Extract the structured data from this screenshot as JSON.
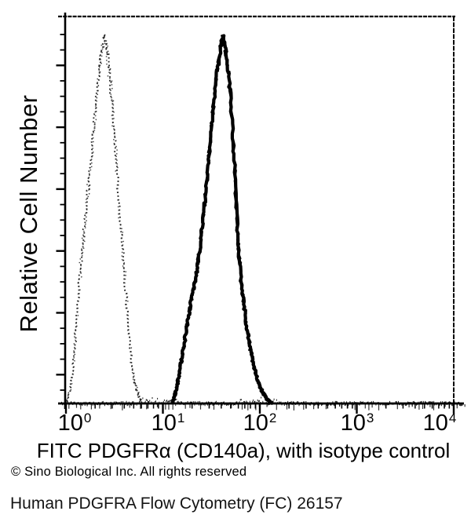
{
  "chart_data": {
    "type": "line",
    "subtype": "flow-cytometry-histogram-overlay",
    "title": "",
    "xlabel": "FITC PDGFRα (CD140a), with isotype control",
    "ylabel": "Relative Cell Number",
    "x_scale": "log10",
    "xlim_log10": [
      0,
      4
    ],
    "ylim": [
      0,
      1
    ],
    "grid": false,
    "legend": "none",
    "axis_color": "#000000",
    "background_color": "#ffffff",
    "x_ticks": [
      {
        "base": "10",
        "exp": "0"
      },
      {
        "base": "10",
        "exp": "1"
      },
      {
        "base": "10",
        "exp": "2"
      },
      {
        "base": "10",
        "exp": "3"
      },
      {
        "base": "10",
        "exp": "4"
      }
    ],
    "series": [
      {
        "name": "Isotype control",
        "line_style": "dotted",
        "color": "#1c1c1c",
        "peak_x_value": 2.5,
        "points_log10x_heightfrac": [
          [
            0.01,
            0
          ],
          [
            0.04,
            0.03
          ],
          [
            0.07,
            0.09
          ],
          [
            0.1,
            0.18
          ],
          [
            0.13,
            0.3
          ],
          [
            0.16,
            0.4
          ],
          [
            0.19,
            0.48
          ],
          [
            0.22,
            0.56
          ],
          [
            0.25,
            0.64
          ],
          [
            0.28,
            0.73
          ],
          [
            0.31,
            0.82
          ],
          [
            0.34,
            0.9
          ],
          [
            0.37,
            0.96
          ],
          [
            0.4,
            1.0
          ],
          [
            0.43,
            0.95
          ],
          [
            0.46,
            0.87
          ],
          [
            0.49,
            0.77
          ],
          [
            0.52,
            0.66
          ],
          [
            0.55,
            0.55
          ],
          [
            0.58,
            0.44
          ],
          [
            0.61,
            0.33
          ],
          [
            0.64,
            0.23
          ],
          [
            0.67,
            0.14
          ],
          [
            0.7,
            0.07
          ],
          [
            0.74,
            0.03
          ],
          [
            0.78,
            0
          ]
        ]
      },
      {
        "name": "FITC PDGFRα (CD140a)",
        "line_style": "solid",
        "color": "#000000",
        "peak_x_value": 42,
        "points_log10x_heightfrac": [
          [
            1.1,
            0
          ],
          [
            1.14,
            0.04
          ],
          [
            1.17,
            0.08
          ],
          [
            1.2,
            0.13
          ],
          [
            1.23,
            0.18
          ],
          [
            1.26,
            0.23
          ],
          [
            1.29,
            0.28
          ],
          [
            1.32,
            0.32
          ],
          [
            1.35,
            0.36
          ],
          [
            1.38,
            0.42
          ],
          [
            1.41,
            0.49
          ],
          [
            1.44,
            0.57
          ],
          [
            1.47,
            0.66
          ],
          [
            1.5,
            0.75
          ],
          [
            1.53,
            0.83
          ],
          [
            1.56,
            0.9
          ],
          [
            1.59,
            0.96
          ],
          [
            1.62,
            1.0
          ],
          [
            1.65,
            0.96
          ],
          [
            1.68,
            0.89
          ],
          [
            1.7,
            0.82
          ],
          [
            1.72,
            0.74
          ],
          [
            1.74,
            0.64
          ],
          [
            1.76,
            0.52
          ],
          [
            1.78,
            0.42
          ],
          [
            1.81,
            0.33
          ],
          [
            1.84,
            0.26
          ],
          [
            1.87,
            0.2
          ],
          [
            1.9,
            0.15
          ],
          [
            1.94,
            0.1
          ],
          [
            1.98,
            0.06
          ],
          [
            2.03,
            0.03
          ],
          [
            2.08,
            0.01
          ],
          [
            2.13,
            0
          ]
        ]
      }
    ]
  },
  "footer": {
    "copyright": "© Sino Biological Inc. All rights reserved",
    "caption": "Human PDGFRA Flow Cytometry (FC) 26157"
  }
}
